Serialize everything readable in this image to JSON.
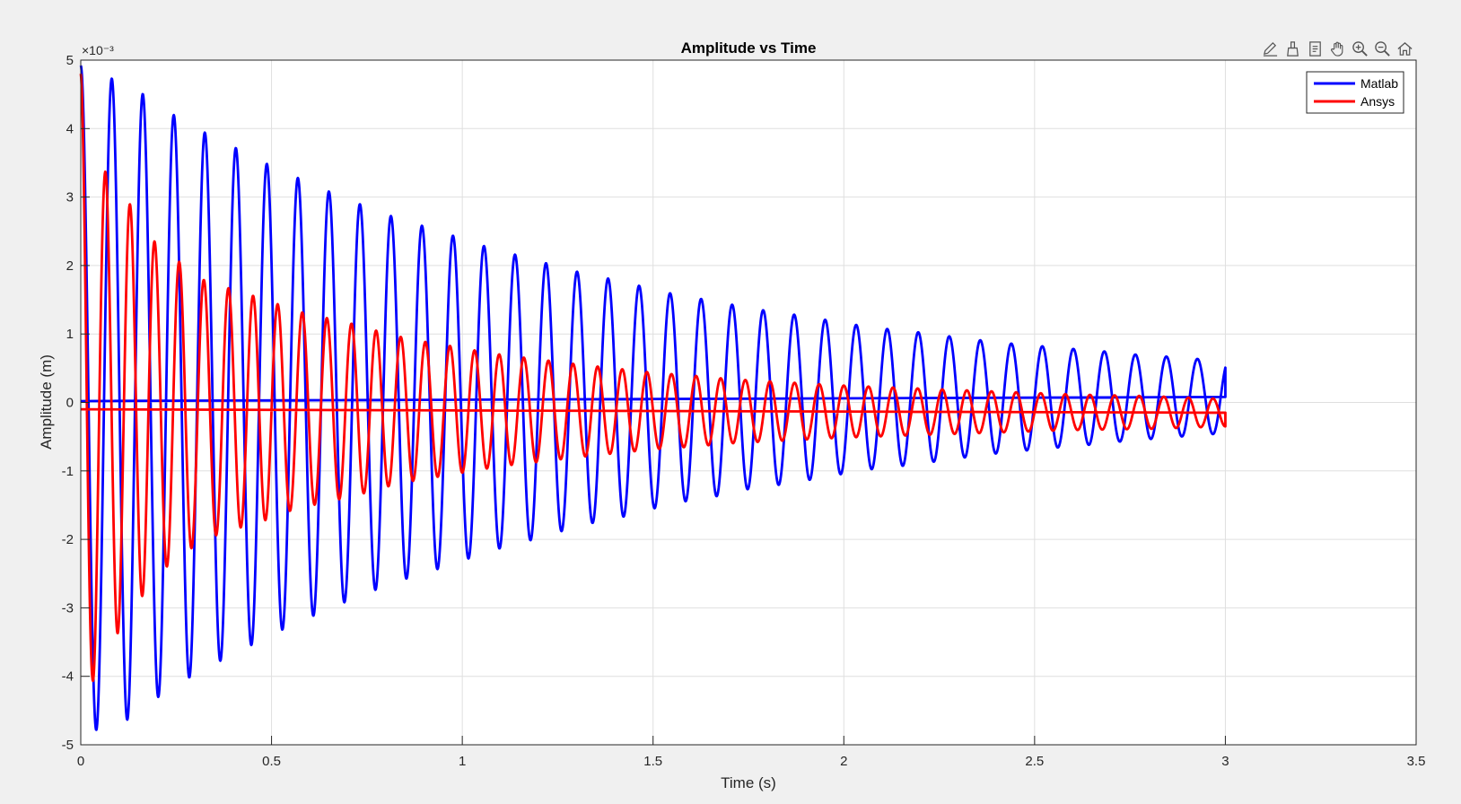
{
  "toolbar": {
    "icons": [
      "edit-icon",
      "brush-icon",
      "data-tips-icon",
      "pan-icon",
      "zoom-in-icon",
      "zoom-out-icon",
      "home-icon"
    ]
  },
  "chart_data": {
    "type": "line",
    "title": "Amplitude vs Time",
    "xlabel": "Time (s)",
    "ylabel": "Amplitude (m)",
    "y_exponent_label": "×10⁻³",
    "xlim": [
      0,
      3.5
    ],
    "ylim": [
      -5,
      5
    ],
    "xticks": [
      0,
      0.5,
      1,
      1.5,
      2,
      2.5,
      3,
      3.5
    ],
    "xtick_labels": [
      "0",
      "0.5",
      "1",
      "1.5",
      "2",
      "2.5",
      "3",
      "3.5"
    ],
    "yticks": [
      -5,
      -4,
      -3,
      -2,
      -1,
      0,
      1,
      2,
      3,
      4,
      5
    ],
    "ytick_labels": [
      "-5",
      "-4",
      "-3",
      "-2",
      "-1",
      "0",
      "1",
      "2",
      "3",
      "4",
      "5"
    ],
    "grid": true,
    "legend_position": "top-right",
    "series": [
      {
        "name": "Matlab",
        "color": "#0000ff",
        "t_end": 3.0,
        "frequency_hz": 12.3,
        "mean": [
          0.02,
          0.08
        ],
        "envelope_t": [
          0.0,
          0.085,
          0.1,
          0.17,
          0.25,
          0.33,
          0.42,
          0.5,
          0.58,
          0.67,
          0.75,
          0.83,
          0.92,
          1.0,
          1.08,
          1.17,
          1.25,
          1.33,
          1.42,
          1.5,
          1.58,
          1.67,
          1.75,
          1.83,
          1.92,
          2.0,
          2.08,
          2.17,
          2.25,
          2.33,
          2.42,
          2.5,
          2.58,
          2.67,
          2.75,
          2.83,
          2.92,
          3.0
        ],
        "envelope_a": [
          4.9,
          4.7,
          4.75,
          4.45,
          4.15,
          3.9,
          3.65,
          3.42,
          3.22,
          3.0,
          2.82,
          2.65,
          2.5,
          2.35,
          2.2,
          2.07,
          1.94,
          1.82,
          1.72,
          1.6,
          1.5,
          1.42,
          1.32,
          1.26,
          1.18,
          1.1,
          1.03,
          0.98,
          0.92,
          0.86,
          0.8,
          0.76,
          0.72,
          0.68,
          0.63,
          0.6,
          0.56,
          0.53
        ]
      },
      {
        "name": "Ansys",
        "color": "#ff0000",
        "t_end": 3.0,
        "frequency_hz": 15.5,
        "mean": [
          -0.1,
          -0.15
        ],
        "envelope_t": [
          0.0,
          0.03,
          0.06,
          0.1,
          0.14,
          0.2,
          0.26,
          0.32,
          0.4,
          0.48,
          0.56,
          0.64,
          0.72,
          0.8,
          0.88,
          0.96,
          1.04,
          1.12,
          1.2,
          1.3,
          1.4,
          1.5,
          1.6,
          1.7,
          1.8,
          1.9,
          2.0,
          2.1,
          2.2,
          2.3,
          2.4,
          2.5,
          2.6,
          2.7,
          2.8,
          2.9,
          3.0
        ],
        "envelope_a": [
          4.9,
          4.0,
          3.5,
          3.25,
          2.9,
          2.4,
          2.15,
          1.9,
          1.75,
          1.62,
          1.45,
          1.35,
          1.25,
          1.12,
          1.02,
          0.95,
          0.87,
          0.8,
          0.75,
          0.68,
          0.62,
          0.56,
          0.52,
          0.47,
          0.44,
          0.41,
          0.38,
          0.36,
          0.34,
          0.32,
          0.3,
          0.28,
          0.26,
          0.25,
          0.24,
          0.22,
          0.2
        ]
      }
    ]
  }
}
